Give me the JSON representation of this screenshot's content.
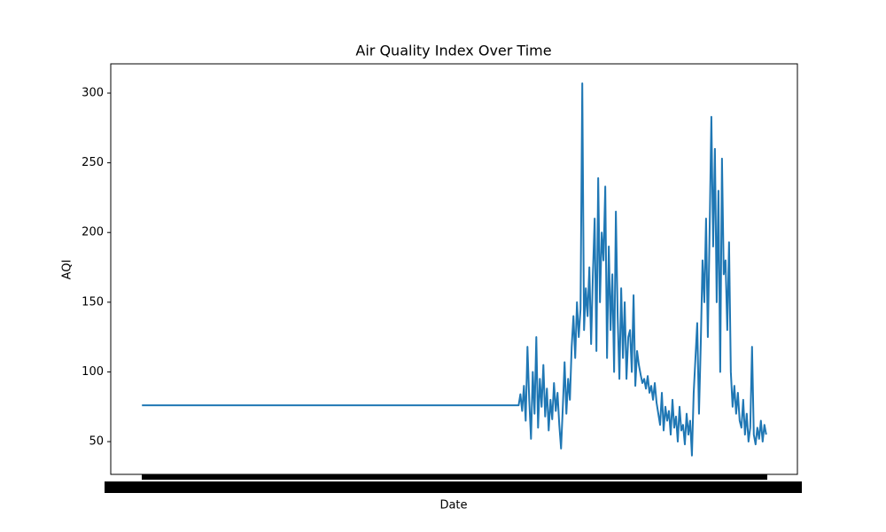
{
  "chart_data": {
    "type": "line",
    "title": "Air Quality Index Over Time",
    "x_label": "Date",
    "y_label": "AQI",
    "x": [
      0,
      213,
      214,
      215,
      216,
      217,
      218,
      219,
      220,
      221,
      222,
      223,
      224,
      225,
      226,
      227,
      228,
      229,
      230,
      231,
      232,
      233,
      234,
      235,
      236,
      237,
      238,
      239,
      240,
      241,
      242,
      243,
      244,
      245,
      246,
      247,
      248,
      249,
      250,
      251,
      252,
      253,
      254,
      255,
      256,
      257,
      258,
      259,
      260,
      261,
      262,
      263,
      264,
      265,
      266,
      267,
      268,
      269,
      270,
      271,
      272,
      273,
      274,
      275,
      276,
      277,
      278,
      279,
      280,
      281,
      282,
      283,
      284,
      285,
      286,
      287,
      288,
      289,
      290,
      291,
      292,
      293,
      294,
      295,
      296,
      297,
      298,
      299,
      300,
      301,
      302,
      303,
      304,
      305,
      306,
      307,
      308,
      309,
      310,
      311,
      312,
      313,
      314,
      315,
      316,
      317,
      318,
      319,
      320,
      321,
      322,
      323,
      324,
      325,
      326,
      327,
      328,
      329,
      330,
      331,
      332,
      333,
      334,
      335,
      336,
      337,
      338,
      339,
      340,
      341,
      342,
      343,
      344,
      345,
      346,
      347,
      348,
      349,
      350,
      351,
      352,
      353
    ],
    "series": [
      {
        "name": "AQI",
        "color": "#1f77b4",
        "values": [
          76,
          76,
          84,
          72,
          90,
          65,
          118,
          80,
          52,
          100,
          70,
          125,
          60,
          95,
          75,
          105,
          68,
          88,
          58,
          80,
          66,
          92,
          72,
          85,
          62,
          45,
          75,
          107,
          70,
          95,
          80,
          118,
          140,
          110,
          150,
          125,
          145,
          307,
          130,
          160,
          140,
          175,
          120,
          170,
          210,
          115,
          239,
          150,
          200,
          180,
          233,
          110,
          190,
          130,
          170,
          100,
          215,
          140,
          95,
          160,
          110,
          150,
          95,
          125,
          130,
          100,
          155,
          90,
          115,
          105,
          98,
          92,
          95,
          88,
          97,
          85,
          90,
          80,
          92,
          78,
          70,
          62,
          85,
          58,
          75,
          65,
          72,
          55,
          80,
          60,
          68,
          50,
          75,
          58,
          62,
          48,
          70,
          55,
          65,
          40,
          85,
          110,
          135,
          70,
          120,
          180,
          150,
          210,
          125,
          200,
          283,
          190,
          260,
          150,
          230,
          100,
          253,
          170,
          180,
          130,
          193,
          100,
          75,
          90,
          70,
          85,
          65,
          60,
          80,
          55,
          70,
          50,
          60,
          118,
          55,
          48,
          60,
          52,
          65,
          50,
          62,
          55
        ]
      }
    ],
    "xlim": [
      -17.65,
      370.65
    ],
    "ylim": [
      26.5,
      321
    ],
    "yticks": [
      50,
      100,
      150,
      200,
      250,
      300
    ]
  }
}
